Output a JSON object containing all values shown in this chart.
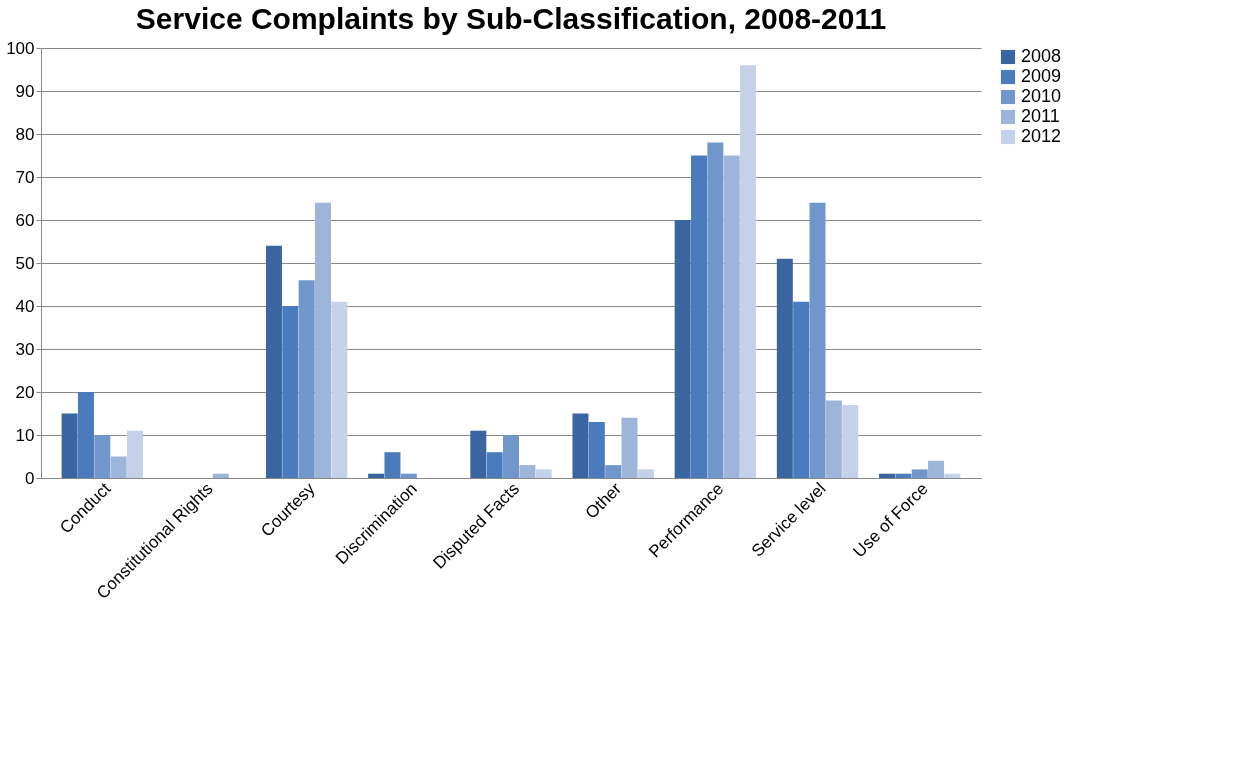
{
  "chart_data": {
    "type": "bar",
    "title": "Service Complaints by Sub-Classification, 2008-2011",
    "categories": [
      "Conduct",
      "Constitutional Rights",
      "Courtesy",
      "Discrimination",
      "Disputed Facts",
      "Other",
      "Performance",
      "Service level",
      "Use of Force"
    ],
    "series": [
      {
        "name": "2008",
        "color": "#3b65a0",
        "values": [
          15,
          0,
          54,
          1,
          11,
          15,
          60,
          51,
          1
        ]
      },
      {
        "name": "2009",
        "color": "#4a7bbd",
        "values": [
          20,
          0,
          40,
          6,
          6,
          13,
          75,
          41,
          1
        ]
      },
      {
        "name": "2010",
        "color": "#7196cc",
        "values": [
          10,
          0,
          46,
          1,
          10,
          3,
          78,
          64,
          2
        ]
      },
      {
        "name": "2011",
        "color": "#9db5d9",
        "values": [
          5,
          1,
          64,
          0,
          3,
          14,
          75,
          18,
          4
        ]
      },
      {
        "name": "2012",
        "color": "#c4d1e8",
        "values": [
          11,
          0,
          41,
          0,
          2,
          2,
          96,
          17,
          1
        ]
      }
    ],
    "ylim": [
      0,
      100
    ],
    "yticks": [
      0,
      10,
      20,
      30,
      40,
      50,
      60,
      70,
      80,
      90,
      100
    ],
    "grid": "y",
    "legend": "right"
  }
}
